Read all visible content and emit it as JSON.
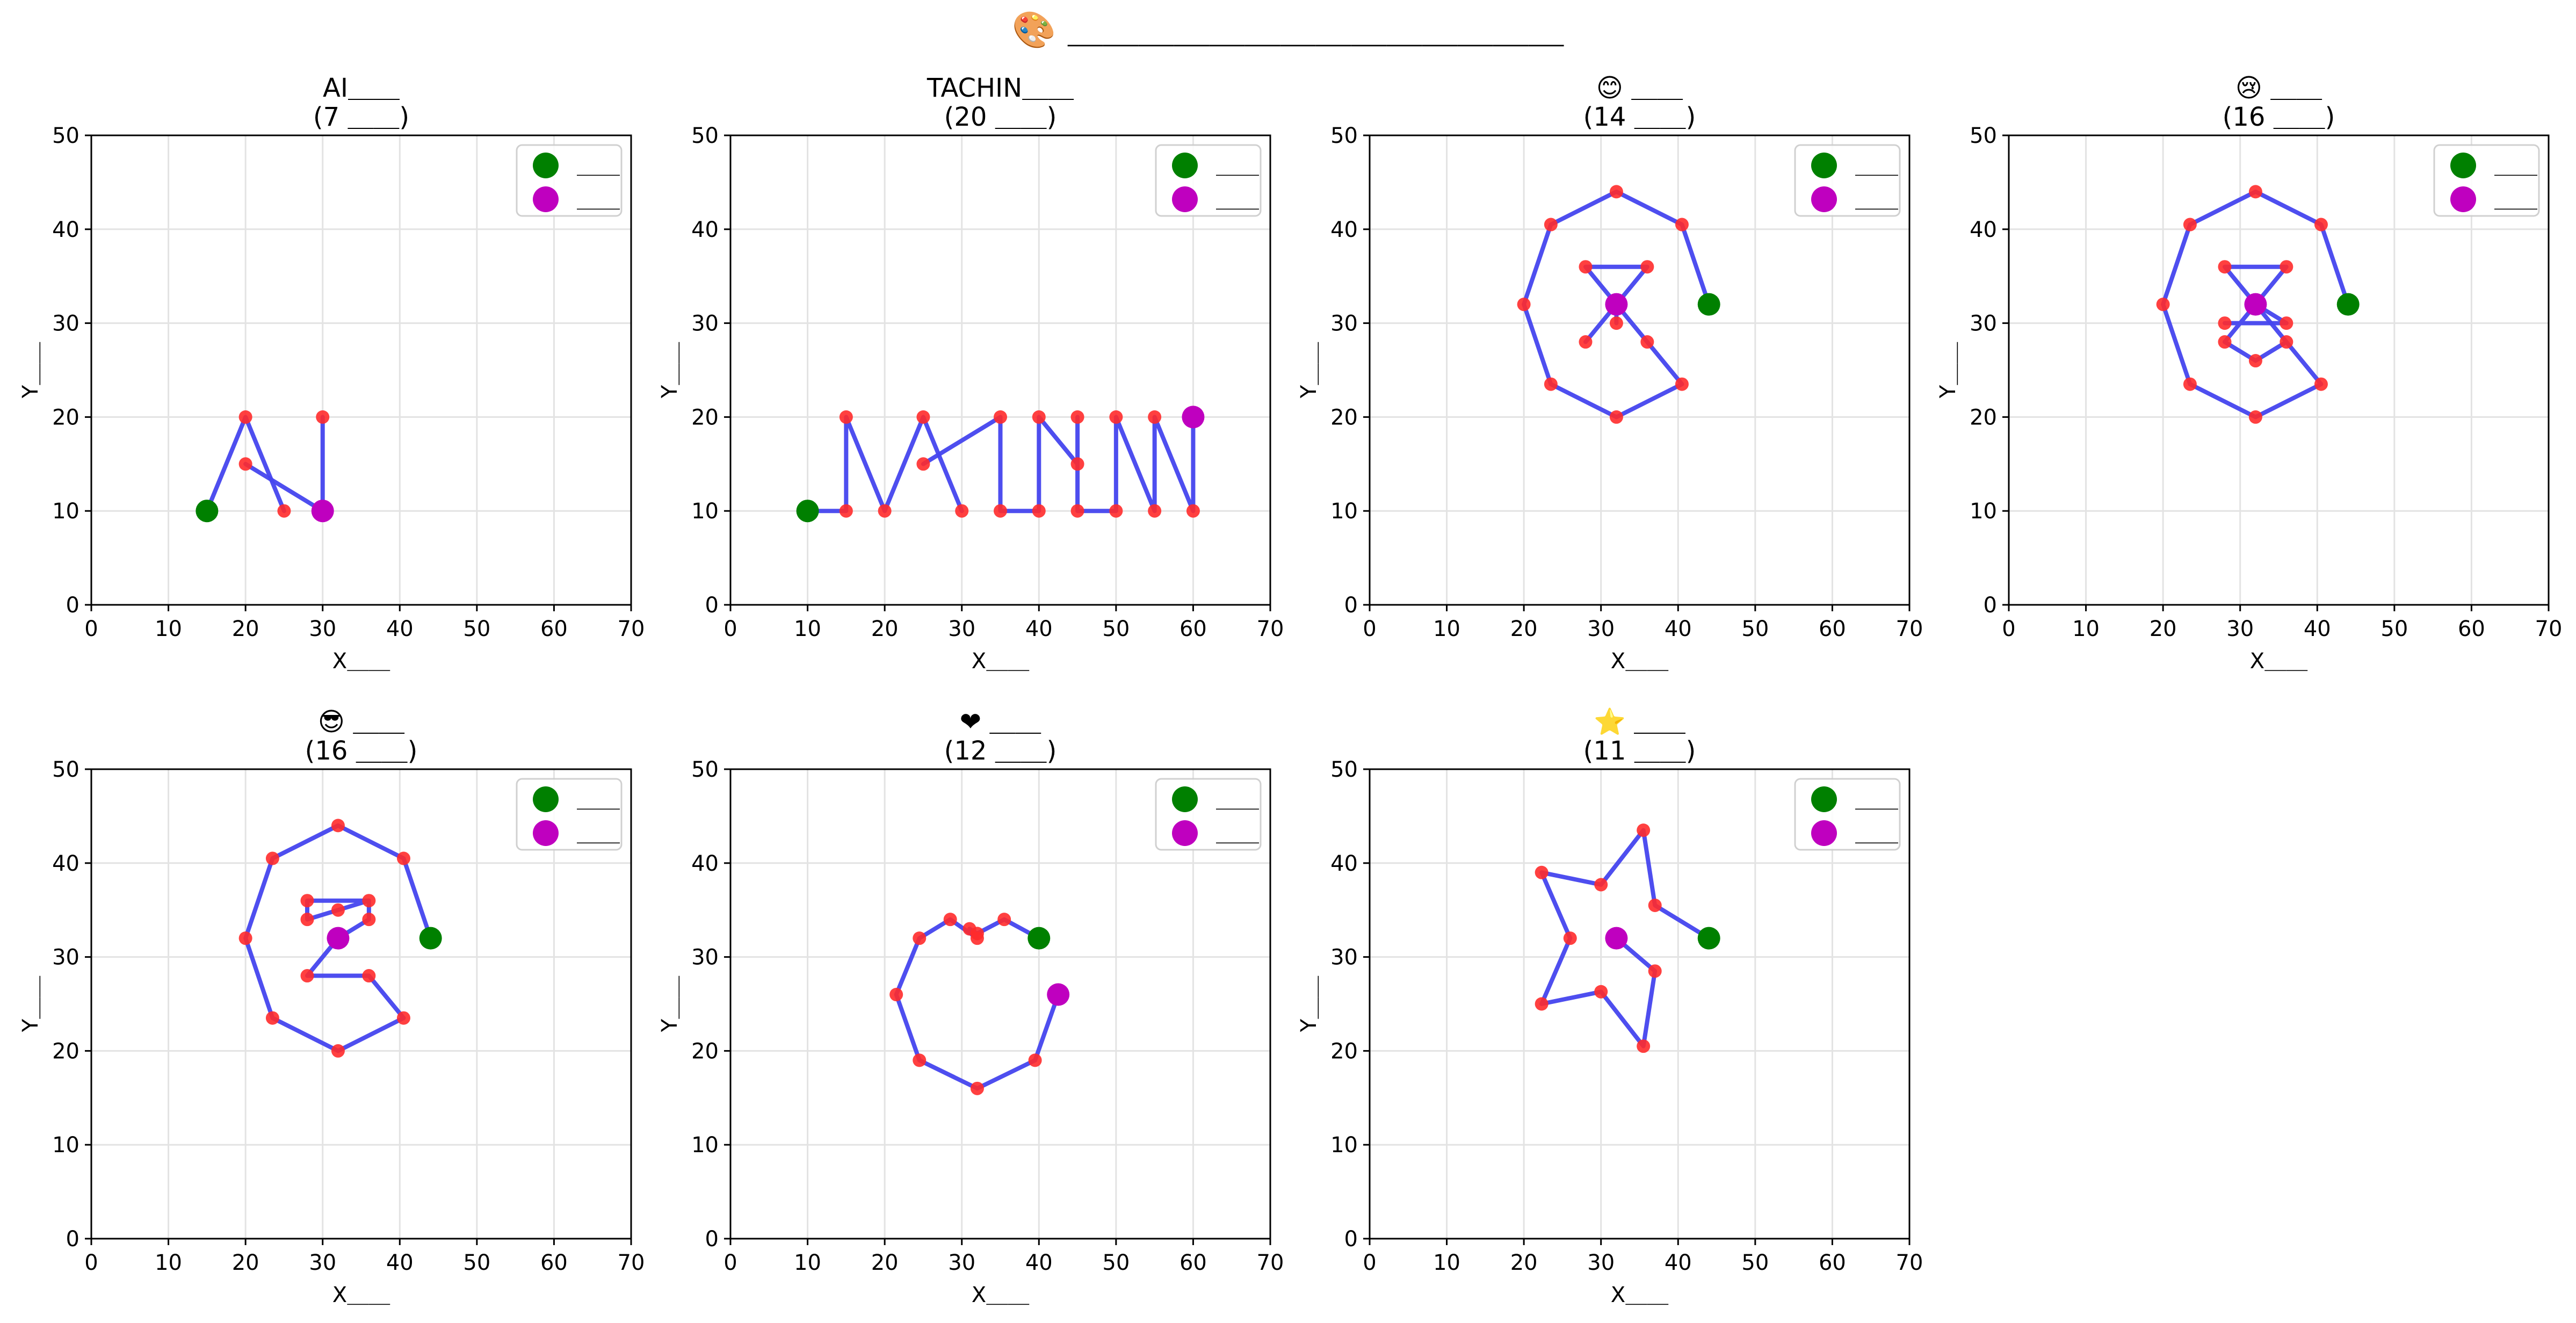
{
  "figure": {
    "title": "🎨 ＿＿＿＿＿＿＿＿＿＿＿＿＿＿"
  },
  "colors": {
    "path": "#4444ee",
    "point": "#ff2b2b",
    "start": "#008000",
    "end": "#bf00bf",
    "grid": "#e3e3e3"
  },
  "chart_data": [
    {
      "type": "scatter",
      "title": "AI＿＿",
      "subtitle": "(7 ＿＿)",
      "xlabel": "X＿＿",
      "ylabel": "Y＿＿",
      "xlim": [
        0,
        70
      ],
      "ylim": [
        0,
        50
      ],
      "xticks": [
        0,
        10,
        20,
        30,
        40,
        50,
        60,
        70
      ],
      "yticks": [
        0,
        10,
        20,
        30,
        40,
        50
      ],
      "grid": true,
      "legend": {
        "position": "top-right",
        "entries": [
          "＿＿",
          "＿＿"
        ]
      },
      "paths": [
        [
          [
            15,
            10
          ],
          [
            20,
            20
          ],
          [
            25,
            10
          ]
        ],
        [
          [
            20,
            15
          ],
          [
            30,
            10
          ]
        ],
        [
          [
            30,
            20
          ],
          [
            30,
            10
          ]
        ]
      ],
      "points": [
        [
          15,
          10
        ],
        [
          20,
          20
        ],
        [
          25,
          10
        ],
        [
          20,
          15
        ],
        [
          30,
          10
        ],
        [
          30,
          20
        ],
        [
          30,
          10
        ]
      ],
      "start": [
        15,
        10
      ],
      "end": [
        30,
        10
      ]
    },
    {
      "type": "scatter",
      "title": "TACHIN＿＿",
      "subtitle": "(20 ＿＿)",
      "xlabel": "X＿＿",
      "ylabel": "Y＿＿",
      "xlim": [
        0,
        70
      ],
      "ylim": [
        0,
        50
      ],
      "xticks": [
        0,
        10,
        20,
        30,
        40,
        50,
        60,
        70
      ],
      "yticks": [
        0,
        10,
        20,
        30,
        40,
        50
      ],
      "grid": true,
      "legend": {
        "position": "top-right",
        "entries": [
          "＿＿",
          "＿＿"
        ]
      },
      "paths": [
        [
          [
            10,
            10
          ],
          [
            15,
            10
          ],
          [
            15,
            20
          ],
          [
            20,
            10
          ],
          [
            25,
            20
          ],
          [
            30,
            10
          ]
        ],
        [
          [
            25,
            15
          ],
          [
            35,
            20
          ],
          [
            35,
            10
          ],
          [
            40,
            10
          ],
          [
            40,
            20
          ],
          [
            45,
            15
          ],
          [
            45,
            20
          ],
          [
            45,
            10
          ],
          [
            50,
            10
          ],
          [
            50,
            20
          ],
          [
            55,
            10
          ],
          [
            55,
            20
          ],
          [
            60,
            10
          ],
          [
            60,
            20
          ]
        ]
      ],
      "points": [
        [
          15,
          10
        ],
        [
          15,
          20
        ],
        [
          20,
          10
        ],
        [
          25,
          20
        ],
        [
          25,
          15
        ],
        [
          30,
          10
        ],
        [
          35,
          20
        ],
        [
          35,
          10
        ],
        [
          40,
          10
        ],
        [
          40,
          20
        ],
        [
          45,
          20
        ],
        [
          45,
          15
        ],
        [
          45,
          10
        ],
        [
          50,
          10
        ],
        [
          50,
          20
        ],
        [
          55,
          20
        ],
        [
          55,
          10
        ],
        [
          60,
          10
        ]
      ],
      "start": [
        10,
        10
      ],
      "end": [
        60,
        20
      ]
    },
    {
      "type": "scatter",
      "title": "😊 ＿＿",
      "subtitle": "(14 ＿＿)",
      "xlabel": "X＿＿",
      "ylabel": "Y＿＿",
      "xlim": [
        0,
        70
      ],
      "ylim": [
        0,
        50
      ],
      "xticks": [
        0,
        10,
        20,
        30,
        40,
        50,
        60,
        70
      ],
      "yticks": [
        0,
        10,
        20,
        30,
        40,
        50
      ],
      "grid": true,
      "legend": {
        "position": "top-right",
        "entries": [
          "＿＿",
          "＿＿"
        ]
      },
      "paths": [
        [
          [
            44,
            32
          ],
          [
            40.5,
            40.5
          ],
          [
            32,
            44
          ],
          [
            23.5,
            40.5
          ],
          [
            20,
            32
          ],
          [
            23.5,
            23.5
          ],
          [
            32,
            20
          ],
          [
            40.5,
            23.5
          ],
          [
            36,
            28
          ],
          [
            32,
            32
          ],
          [
            28,
            28
          ]
        ],
        [
          [
            32,
            32
          ],
          [
            28,
            36
          ],
          [
            36,
            36
          ],
          [
            32,
            32
          ],
          [
            32,
            30
          ]
        ]
      ],
      "points": [
        [
          40.5,
          40.5
        ],
        [
          32,
          44
        ],
        [
          23.5,
          40.5
        ],
        [
          20,
          32
        ],
        [
          23.5,
          23.5
        ],
        [
          32,
          20
        ],
        [
          40.5,
          23.5
        ],
        [
          36,
          28
        ],
        [
          28,
          28
        ],
        [
          28,
          36
        ],
        [
          36,
          36
        ],
        [
          32,
          30
        ]
      ],
      "start": [
        44,
        32
      ],
      "end": [
        32,
        32
      ]
    },
    {
      "type": "scatter",
      "title": "😢 ＿＿",
      "subtitle": "(16 ＿＿)",
      "xlabel": "X＿＿",
      "ylabel": "Y＿＿",
      "xlim": [
        0,
        70
      ],
      "ylim": [
        0,
        50
      ],
      "xticks": [
        0,
        10,
        20,
        30,
        40,
        50,
        60,
        70
      ],
      "yticks": [
        0,
        10,
        20,
        30,
        40,
        50
      ],
      "grid": true,
      "legend": {
        "position": "top-right",
        "entries": [
          "＿＿",
          "＿＿"
        ]
      },
      "paths": [
        [
          [
            44,
            32
          ],
          [
            40.5,
            40.5
          ],
          [
            32,
            44
          ],
          [
            23.5,
            40.5
          ],
          [
            20,
            32
          ],
          [
            23.5,
            23.5
          ],
          [
            32,
            20
          ],
          [
            40.5,
            23.5
          ],
          [
            36,
            28
          ],
          [
            32,
            26
          ],
          [
            28,
            28
          ]
        ],
        [
          [
            28,
            30
          ],
          [
            36,
            30
          ],
          [
            32,
            32
          ],
          [
            28,
            28
          ]
        ],
        [
          [
            32,
            32
          ],
          [
            28,
            36
          ],
          [
            36,
            36
          ],
          [
            32,
            32
          ],
          [
            36,
            28
          ]
        ]
      ],
      "points": [
        [
          40.5,
          40.5
        ],
        [
          32,
          44
        ],
        [
          23.5,
          40.5
        ],
        [
          20,
          32
        ],
        [
          23.5,
          23.5
        ],
        [
          32,
          20
        ],
        [
          40.5,
          23.5
        ],
        [
          36,
          28
        ],
        [
          32,
          26
        ],
        [
          28,
          28
        ],
        [
          28,
          30
        ],
        [
          36,
          30
        ],
        [
          28,
          36
        ],
        [
          36,
          36
        ]
      ],
      "start": [
        44,
        32
      ],
      "end": [
        32,
        32
      ]
    },
    {
      "type": "scatter",
      "title": "😎 ＿＿",
      "subtitle": "(16 ＿＿)",
      "xlabel": "X＿＿",
      "ylabel": "Y＿＿",
      "xlim": [
        0,
        70
      ],
      "ylim": [
        0,
        50
      ],
      "xticks": [
        0,
        10,
        20,
        30,
        40,
        50,
        60,
        70
      ],
      "yticks": [
        0,
        10,
        20,
        30,
        40,
        50
      ],
      "grid": true,
      "legend": {
        "position": "top-right",
        "entries": [
          "＿＿",
          "＿＿"
        ]
      },
      "paths": [
        [
          [
            44,
            32
          ],
          [
            40.5,
            40.5
          ],
          [
            32,
            44
          ],
          [
            23.5,
            40.5
          ],
          [
            20,
            32
          ],
          [
            23.5,
            23.5
          ],
          [
            32,
            20
          ],
          [
            40.5,
            23.5
          ],
          [
            36,
            28
          ],
          [
            28,
            28
          ],
          [
            32,
            32
          ],
          [
            36,
            34
          ],
          [
            36,
            36
          ],
          [
            28,
            36
          ],
          [
            28,
            34
          ],
          [
            32,
            35
          ],
          [
            36,
            36
          ]
        ]
      ],
      "points": [
        [
          40.5,
          40.5
        ],
        [
          32,
          44
        ],
        [
          23.5,
          40.5
        ],
        [
          20,
          32
        ],
        [
          23.5,
          23.5
        ],
        [
          32,
          20
        ],
        [
          40.5,
          23.5
        ],
        [
          36,
          28
        ],
        [
          28,
          28
        ],
        [
          36,
          34
        ],
        [
          36,
          36
        ],
        [
          28,
          36
        ],
        [
          28,
          34
        ],
        [
          32,
          35
        ]
      ],
      "start": [
        44,
        32
      ],
      "end": [
        32,
        32
      ]
    },
    {
      "type": "scatter",
      "title": "❤ ＿＿",
      "subtitle": "(12 ＿＿)",
      "xlabel": "X＿＿",
      "ylabel": "Y＿＿",
      "xlim": [
        0,
        70
      ],
      "ylim": [
        0,
        50
      ],
      "xticks": [
        0,
        10,
        20,
        30,
        40,
        50,
        60,
        70
      ],
      "yticks": [
        0,
        10,
        20,
        30,
        40,
        50
      ],
      "grid": true,
      "legend": {
        "position": "top-right",
        "entries": [
          "＿＿",
          "＿＿"
        ]
      },
      "paths": [
        [
          [
            40,
            32
          ],
          [
            35.5,
            34
          ],
          [
            32,
            32.5
          ],
          [
            31,
            33
          ],
          [
            32,
            32
          ],
          [
            28.5,
            34
          ],
          [
            24.5,
            32
          ],
          [
            21.5,
            26
          ],
          [
            24.5,
            19
          ],
          [
            32,
            16
          ],
          [
            39.5,
            19
          ],
          [
            42.5,
            26
          ]
        ]
      ],
      "points": [
        [
          35.5,
          34
        ],
        [
          32,
          32.5
        ],
        [
          31,
          33
        ],
        [
          32,
          32
        ],
        [
          28.5,
          34
        ],
        [
          24.5,
          32
        ],
        [
          21.5,
          26
        ],
        [
          24.5,
          19
        ],
        [
          32,
          16
        ],
        [
          39.5,
          19
        ]
      ],
      "start": [
        40,
        32
      ],
      "end": [
        42.5,
        26
      ]
    },
    {
      "type": "scatter",
      "title": "⭐ ＿＿",
      "subtitle": "(11 ＿＿)",
      "xlabel": "X＿＿",
      "ylabel": "Y＿＿",
      "xlim": [
        0,
        70
      ],
      "ylim": [
        0,
        50
      ],
      "xticks": [
        0,
        10,
        20,
        30,
        40,
        50,
        60,
        70
      ],
      "yticks": [
        0,
        10,
        20,
        30,
        40,
        50
      ],
      "grid": true,
      "legend": {
        "position": "top-right",
        "entries": [
          "＿＿",
          "＿＿"
        ]
      },
      "paths": [
        [
          [
            44,
            32
          ],
          [
            37,
            35.5
          ],
          [
            35.5,
            43.5
          ],
          [
            30,
            37.7
          ],
          [
            22.3,
            39
          ],
          [
            26,
            32
          ],
          [
            22.3,
            25
          ],
          [
            30,
            26.3
          ],
          [
            35.5,
            20.5
          ],
          [
            37,
            28.5
          ],
          [
            32,
            32
          ]
        ]
      ],
      "points": [
        [
          37,
          35.5
        ],
        [
          35.5,
          43.5
        ],
        [
          30,
          37.7
        ],
        [
          22.3,
          39
        ],
        [
          26,
          32
        ],
        [
          22.3,
          25
        ],
        [
          30,
          26.3
        ],
        [
          35.5,
          20.5
        ],
        [
          37,
          28.5
        ]
      ],
      "start": [
        44,
        32
      ],
      "end": [
        32,
        32
      ]
    }
  ]
}
